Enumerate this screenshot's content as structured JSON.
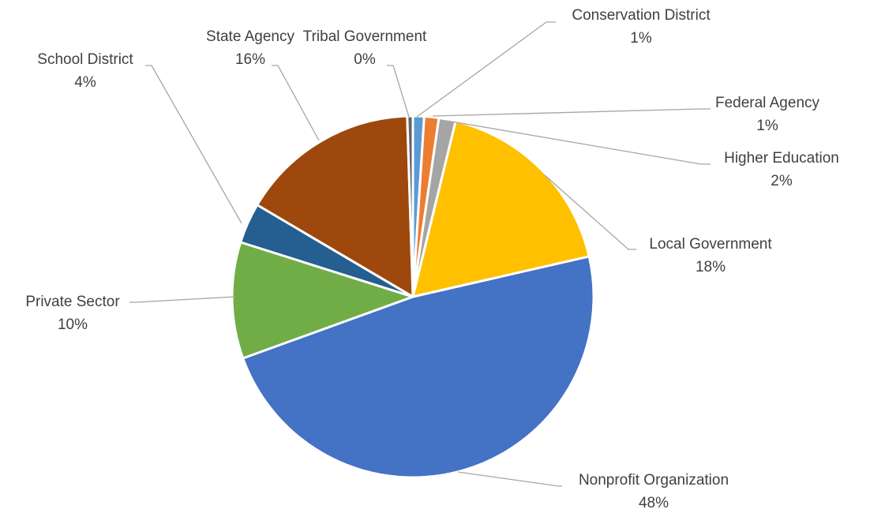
{
  "chart_data": {
    "type": "pie",
    "title": "",
    "slices": [
      {
        "label": "Conservation District",
        "percent_label": "1%",
        "value": 1.0,
        "color": "#5b9bd5"
      },
      {
        "label": "Federal Agency",
        "percent_label": "1%",
        "value": 1.3,
        "color": "#ed7d31"
      },
      {
        "label": "Higher Education",
        "percent_label": "2%",
        "value": 1.5,
        "color": "#a5a5a5"
      },
      {
        "label": "Local Government",
        "percent_label": "18%",
        "value": 17.6,
        "color": "#ffc000"
      },
      {
        "label": "Nonprofit Organization",
        "percent_label": "48%",
        "value": 48.0,
        "color": "#4472c4"
      },
      {
        "label": "Private Sector",
        "percent_label": "10%",
        "value": 10.4,
        "color": "#70ad47"
      },
      {
        "label": "School District",
        "percent_label": "4%",
        "value": 3.6,
        "color": "#255e91"
      },
      {
        "label": "State Agency",
        "percent_label": "16%",
        "value": 16.0,
        "color": "#9e480e"
      },
      {
        "label": "Tribal Government",
        "percent_label": "0%",
        "value": 0.5,
        "color": "#636363"
      }
    ],
    "legend": "none",
    "data_labels": "outside-with-leader-lines"
  }
}
